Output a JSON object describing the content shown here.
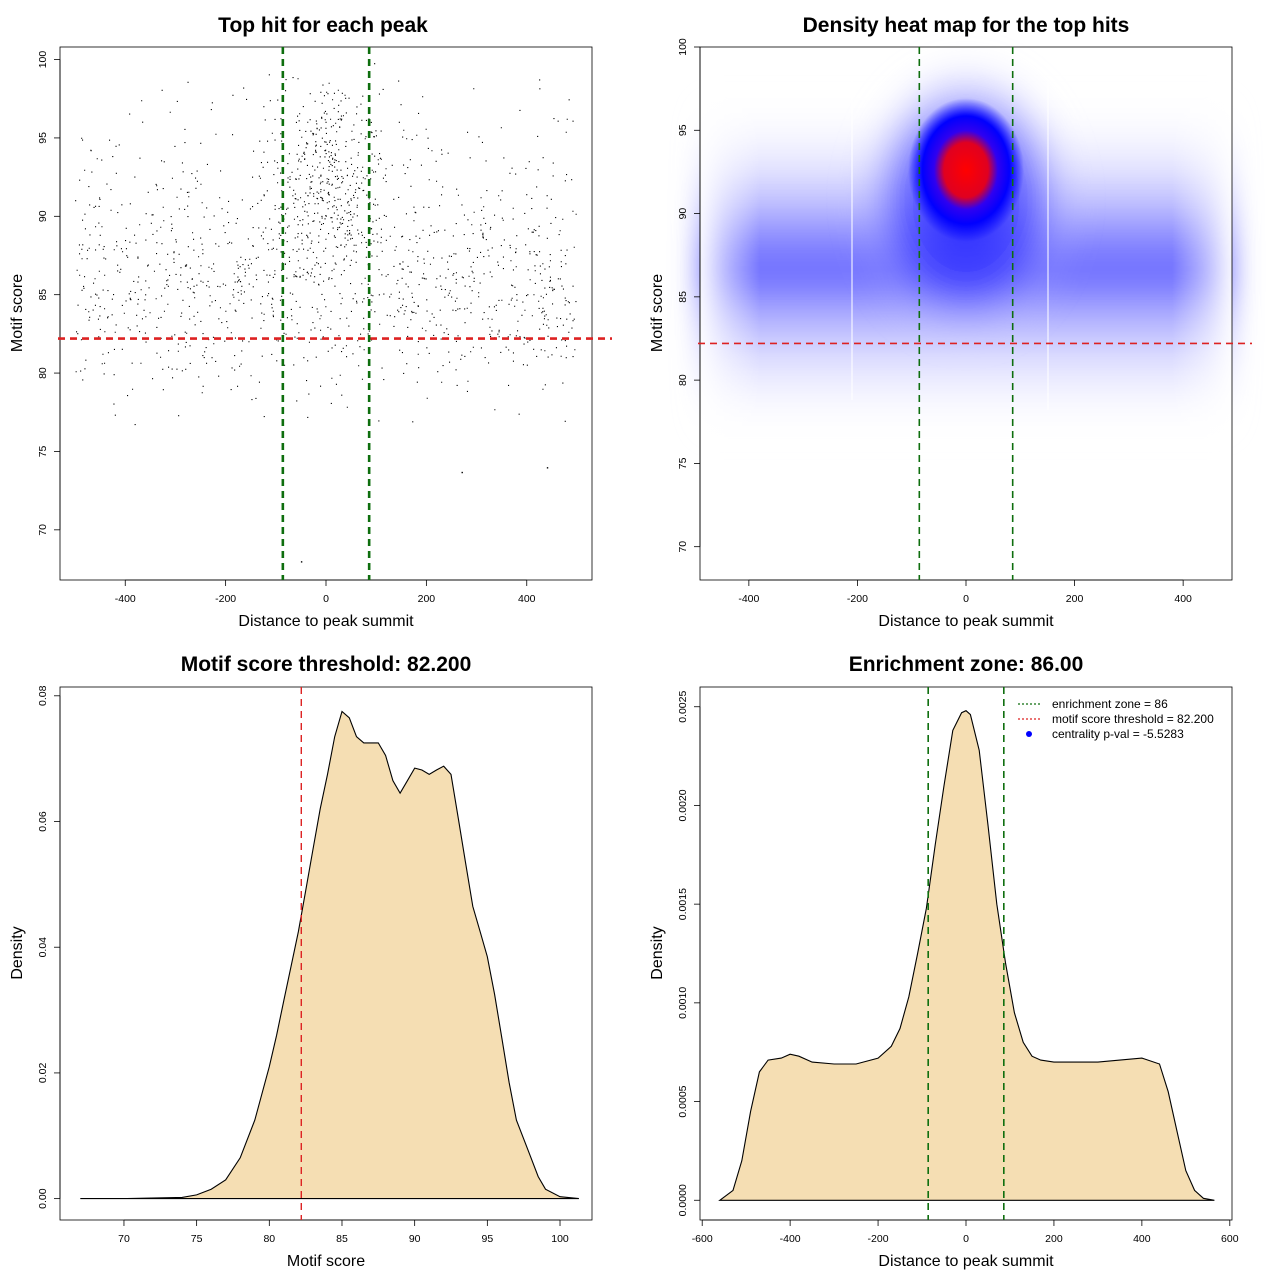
{
  "panels": {
    "scatter": {
      "title": "Top hit for each peak",
      "xlabel": "Distance to peak summit",
      "ylabel": "Motif score",
      "xlim": [
        -530,
        530
      ],
      "ylim": [
        66.8,
        100.8
      ],
      "xticks": [
        -400,
        -200,
        0,
        200,
        400
      ],
      "yticks": [
        70,
        75,
        80,
        85,
        90,
        95,
        100
      ]
    },
    "heatmap": {
      "title": "Density heat map for the top hits",
      "xlabel": "Distance to peak summit",
      "ylabel": "Motif score",
      "xlim": [
        -490,
        490
      ],
      "ylim": [
        68.0,
        100.0
      ],
      "xticks": [
        -400,
        -200,
        0,
        200,
        400
      ],
      "yticks": [
        70,
        75,
        80,
        85,
        90,
        95,
        100
      ]
    },
    "score_density": {
      "title": "Motif score threshold: 82.200",
      "xlabel": "Motif score",
      "ylabel": "Density",
      "xlim": [
        65.6,
        102.2
      ],
      "ylim": [
        -0.0034,
        0.0814
      ],
      "xticks": [
        70,
        75,
        80,
        85,
        90,
        95,
        100
      ],
      "yticks": [
        0.0,
        0.02,
        0.04,
        0.06,
        0.08
      ],
      "ytick_labels": [
        "0.00",
        "0.02",
        "0.04",
        "0.06",
        "0.08"
      ]
    },
    "distance_density": {
      "title": "Enrichment zone: 86.00",
      "xlabel": "Distance to peak summit",
      "ylabel": "Density",
      "xlim": [
        -605,
        605
      ],
      "ylim": [
        -0.0001,
        0.0026
      ],
      "xticks": [
        -600,
        -400,
        -200,
        0,
        200,
        400,
        600
      ],
      "yticks": [
        0.0,
        0.0005,
        0.001,
        0.0015,
        0.002,
        0.0025
      ],
      "ytick_labels": [
        "0.0000",
        "0.0005",
        "0.0010",
        "0.0015",
        "0.0020",
        "0.0025"
      ],
      "legend": [
        "enrichment zone = 86",
        "motif score threshold = 82.200",
        "centrality p-val = -5.5283"
      ]
    }
  },
  "chart_data": [
    {
      "type": "scatter",
      "title": "Top hit for each peak",
      "xlabel": "Distance to peak summit",
      "ylabel": "Motif score",
      "xrange": [
        -500,
        500
      ],
      "n_points": 26000,
      "background_score_mean": 86,
      "central_cluster": {
        "x_center": 0,
        "y_center": 92.5,
        "x_sd": 60,
        "y_sd": 3
      },
      "outliers": [
        {
          "x": -50,
          "y": 68.0
        },
        {
          "x": 270,
          "y": 73.7
        },
        {
          "x": 440,
          "y": 74.0
        }
      ],
      "hlines": [
        {
          "y": 82.2,
          "color": "#dd2222",
          "style": "dashed"
        }
      ],
      "vlines": [
        {
          "x": -86,
          "color": "#0e6e0e",
          "style": "dashed"
        },
        {
          "x": 86,
          "color": "#0e6e0e",
          "style": "dashed"
        }
      ]
    },
    {
      "type": "heatmap",
      "title": "Density heat map for the top hits",
      "xlabel": "Distance to peak summit",
      "ylabel": "Motif score",
      "peak": {
        "x": 0,
        "y": 93
      },
      "hlines": [
        {
          "y": 82.2,
          "color": "#dd2222",
          "style": "dashed"
        }
      ],
      "vlines": [
        {
          "x": -86,
          "color": "#0e6e0e",
          "style": "dashed"
        },
        {
          "x": 86,
          "color": "#0e6e0e",
          "style": "dashed"
        }
      ],
      "colors": {
        "low": "#ffffff",
        "mid": "#0000ff",
        "high": "#ff0000"
      }
    },
    {
      "type": "area",
      "title": "Motif score threshold: 82.200",
      "xlabel": "Motif score",
      "ylabel": "Density",
      "fill": "#f5deb3",
      "x": [
        67,
        70,
        74,
        75,
        76,
        77,
        78,
        79,
        80,
        80.5,
        81,
        81.5,
        82,
        82.5,
        83,
        83.5,
        84,
        84.5,
        85,
        85.5,
        86,
        86.5,
        87,
        87.5,
        88,
        88.5,
        89,
        89.5,
        90,
        90.5,
        91,
        91.5,
        92,
        92.5,
        93,
        93.5,
        94,
        94.5,
        95,
        95.5,
        96,
        96.5,
        97,
        97.5,
        98,
        98.5,
        99,
        100,
        101.3
      ],
      "y": [
        0.0,
        0.0,
        0.0002,
        0.0006,
        0.0015,
        0.003,
        0.0065,
        0.0125,
        0.021,
        0.026,
        0.0315,
        0.037,
        0.0425,
        0.049,
        0.0555,
        0.062,
        0.0675,
        0.0735,
        0.0775,
        0.0765,
        0.0735,
        0.0725,
        0.0725,
        0.0725,
        0.0705,
        0.0665,
        0.0645,
        0.0665,
        0.0685,
        0.0682,
        0.0675,
        0.0682,
        0.0688,
        0.0675,
        0.0605,
        0.0535,
        0.0465,
        0.0425,
        0.0385,
        0.0325,
        0.0255,
        0.0185,
        0.0125,
        0.0095,
        0.0065,
        0.0035,
        0.0015,
        0.0003,
        0.0
      ],
      "vlines": [
        {
          "x": 82.2,
          "color": "#dd2222",
          "style": "dashed"
        }
      ]
    },
    {
      "type": "area",
      "title": "Enrichment zone: 86.00",
      "xlabel": "Distance to peak summit",
      "ylabel": "Density",
      "fill": "#f5deb3",
      "x": [
        -560,
        -530,
        -510,
        -490,
        -470,
        -450,
        -420,
        -400,
        -380,
        -350,
        -300,
        -250,
        -200,
        -170,
        -150,
        -130,
        -110,
        -90,
        -70,
        -50,
        -30,
        -10,
        0,
        10,
        30,
        50,
        70,
        90,
        110,
        130,
        150,
        170,
        200,
        250,
        300,
        350,
        400,
        440,
        460,
        480,
        500,
        520,
        540,
        565
      ],
      "y": [
        0.0,
        5e-05,
        0.0002,
        0.00045,
        0.00065,
        0.00071,
        0.00072,
        0.00074,
        0.00073,
        0.0007,
        0.00069,
        0.00069,
        0.00072,
        0.00078,
        0.00087,
        0.00103,
        0.00125,
        0.00148,
        0.0018,
        0.0021,
        0.00238,
        0.00247,
        0.00248,
        0.00246,
        0.00228,
        0.0019,
        0.0015,
        0.0012,
        0.00095,
        0.0008,
        0.00073,
        0.00071,
        0.0007,
        0.0007,
        0.0007,
        0.00071,
        0.00072,
        0.00069,
        0.00055,
        0.00035,
        0.00015,
        5e-05,
        1e-05,
        0.0
      ],
      "vlines": [
        {
          "x": -86,
          "color": "#0e6e0e",
          "style": "dashed"
        },
        {
          "x": 86,
          "color": "#0e6e0e",
          "style": "dashed"
        }
      ],
      "legend": [
        {
          "label": "enrichment zone = 86",
          "color": "#0e6e0e",
          "style": "dotted"
        },
        {
          "label": "motif score threshold = 82.200",
          "color": "#dd2222",
          "style": "dotted"
        },
        {
          "label": "centrality p-val = -5.5283",
          "color": "#0000ff",
          "style": "point"
        }
      ],
      "legend_position": "top-right"
    }
  ],
  "colors": {
    "green": "#0e6e0e",
    "red": "#dd2222",
    "fill": "#f5deb3"
  }
}
